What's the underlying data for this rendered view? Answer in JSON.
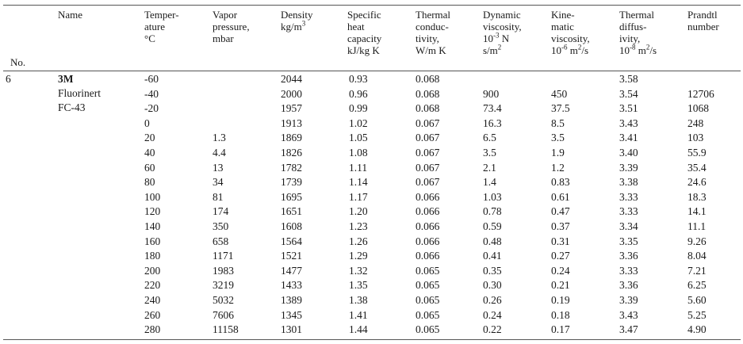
{
  "headers": {
    "no": "No.",
    "name": "Name",
    "temp": [
      "Temper-",
      "ature",
      "°C"
    ],
    "vapor": [
      "Vapor",
      "pressure,",
      "mbar"
    ],
    "density": [
      "Density",
      "kg/m",
      "3"
    ],
    "cp": [
      "Specific",
      "heat",
      "capacity",
      "kJ/kg K"
    ],
    "k": [
      "Thermal",
      "conduc-",
      "tivity,",
      "W/m K"
    ],
    "mu": [
      "Dynamic",
      "viscosity,",
      "10",
      "-3",
      " N",
      "s/m",
      "2"
    ],
    "nu": [
      "Kine-",
      "matic",
      "viscosity,",
      "10",
      "-6",
      " m",
      "2",
      "/s"
    ],
    "alpha": [
      "Thermal",
      "diffus-",
      "ivity,",
      "10",
      "-8",
      " m",
      "2",
      "/s"
    ],
    "pr": [
      "Prandtl",
      "number"
    ]
  },
  "fluid": {
    "no": "6",
    "name": [
      "3M",
      "Fluorinert",
      "FC-43"
    ]
  },
  "rows": [
    {
      "t": "-60",
      "p": "",
      "rho": "2044",
      "cp": "0.93",
      "k": "0.068",
      "mu": "",
      "nu": "",
      "a": "3.58",
      "pr": ""
    },
    {
      "t": "-40",
      "p": "",
      "rho": "2000",
      "cp": "0.96",
      "k": "0.068",
      "mu": "900",
      "nu": "450",
      "a": "3.54",
      "pr": "12706"
    },
    {
      "t": "-20",
      "p": "",
      "rho": "1957",
      "cp": "0.99",
      "k": "0.068",
      "mu": "73.4",
      "nu": "37.5",
      "a": "3.51",
      "pr": "1068"
    },
    {
      "t": "0",
      "p": "",
      "rho": "1913",
      "cp": "1.02",
      "k": "0.067",
      "mu": "16.3",
      "nu": "8.5",
      "a": "3.43",
      "pr": "248"
    },
    {
      "t": "20",
      "p": "1.3",
      "rho": "1869",
      "cp": "1.05",
      "k": "0.067",
      "mu": "6.5",
      "nu": "3.5",
      "a": "3.41",
      "pr": "103"
    },
    {
      "t": "40",
      "p": "4.4",
      "rho": "1826",
      "cp": "1.08",
      "k": "0.067",
      "mu": "3.5",
      "nu": "1.9",
      "a": "3.40",
      "pr": "55.9"
    },
    {
      "t": "60",
      "p": "13",
      "rho": "1782",
      "cp": "1.11",
      "k": "0.067",
      "mu": "2.1",
      "nu": "1.2",
      "a": "3.39",
      "pr": "35.4"
    },
    {
      "t": "80",
      "p": "34",
      "rho": "1739",
      "cp": "1.14",
      "k": "0.067",
      "mu": "1.4",
      "nu": "0.83",
      "a": "3.38",
      "pr": "24.6"
    },
    {
      "t": "100",
      "p": "81",
      "rho": "1695",
      "cp": "1.17",
      "k": "0.066",
      "mu": "1.03",
      "nu": "0.61",
      "a": "3.33",
      "pr": "18.3"
    },
    {
      "t": "120",
      "p": "174",
      "rho": "1651",
      "cp": "1.20",
      "k": "0.066",
      "mu": "0.78",
      "nu": "0.47",
      "a": "3.33",
      "pr": "14.1"
    },
    {
      "t": "140",
      "p": "350",
      "rho": "1608",
      "cp": "1.23",
      "k": "0.066",
      "mu": "0.59",
      "nu": "0.37",
      "a": "3.34",
      "pr": "11.1"
    },
    {
      "t": "160",
      "p": "658",
      "rho": "1564",
      "cp": "1.26",
      "k": "0.066",
      "mu": "0.48",
      "nu": "0.31",
      "a": "3.35",
      "pr": "9.26"
    },
    {
      "t": "180",
      "p": "1171",
      "rho": "1521",
      "cp": "1.29",
      "k": "0.066",
      "mu": "0.41",
      "nu": "0.27",
      "a": "3.36",
      "pr": "8.04"
    },
    {
      "t": "200",
      "p": "1983",
      "rho": "1477",
      "cp": "1.32",
      "k": "0.065",
      "mu": "0.35",
      "nu": "0.24",
      "a": "3.33",
      "pr": "7.21"
    },
    {
      "t": "220",
      "p": "3219",
      "rho": "1433",
      "cp": "1.35",
      "k": "0.065",
      "mu": "0.30",
      "nu": "0.21",
      "a": "3.36",
      "pr": "6.25"
    },
    {
      "t": "240",
      "p": "5032",
      "rho": "1389",
      "cp": "1.38",
      "k": "0.065",
      "mu": "0.26",
      "nu": "0.19",
      "a": "3.39",
      "pr": "5.60"
    },
    {
      "t": "260",
      "p": "7606",
      "rho": "1345",
      "cp": "1.41",
      "k": "0.065",
      "mu": "0.24",
      "nu": "0.18",
      "a": "3.43",
      "pr": "5.25"
    },
    {
      "t": "280",
      "p": "11158",
      "rho": "1301",
      "cp": "1.44",
      "k": "0.065",
      "mu": "0.22",
      "nu": "0.17",
      "a": "3.47",
      "pr": "4.90"
    }
  ]
}
